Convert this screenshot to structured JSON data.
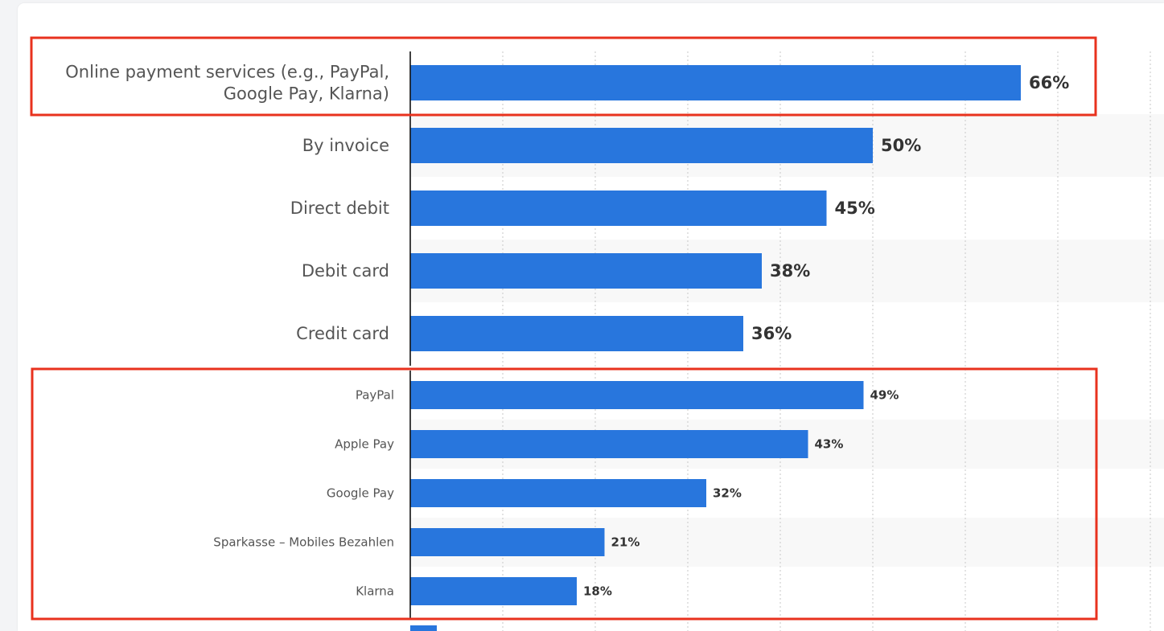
{
  "chart_data": {
    "type": "bar",
    "orientation": "horizontal",
    "title": "",
    "xlabel": "",
    "ylabel": "",
    "xlim": [
      0,
      100
    ],
    "unit": "%",
    "grid": true,
    "groups": [
      {
        "categories": [
          [
            "Online payment services (e.g., PayPal,",
            "Google Pay, Klarna)"
          ],
          [
            "By invoice"
          ],
          [
            "Direct debit"
          ],
          [
            "Debit card"
          ],
          [
            "Credit card"
          ]
        ],
        "values": [
          66,
          50,
          45,
          38,
          36
        ],
        "labels": [
          "66%",
          "50%",
          "45%",
          "38%",
          "36%"
        ],
        "highlighted_rows": [
          0
        ]
      },
      {
        "categories": [
          [
            "PayPal"
          ],
          [
            "Apple Pay"
          ],
          [
            "Google Pay"
          ],
          [
            "Sparkasse – Mobiles Bezahlen"
          ],
          [
            "Klarna"
          ]
        ],
        "values": [
          49,
          43,
          32,
          21,
          18
        ],
        "labels": [
          "49%",
          "43%",
          "32%",
          "21%",
          "18%"
        ],
        "highlighted": true
      }
    ]
  },
  "colors": {
    "bar": "#2876dd",
    "highlight_box": "#e8321e",
    "band": "#f8f8f8",
    "grid": "#c7c7c7"
  }
}
